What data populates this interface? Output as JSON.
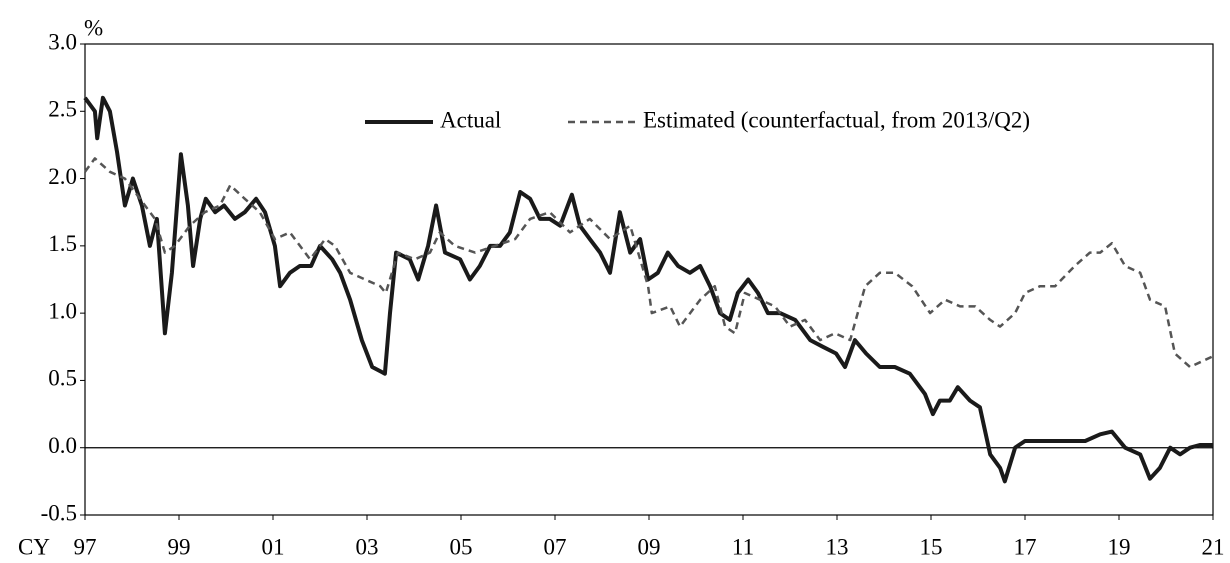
{
  "chart_data": {
    "type": "line",
    "y_unit": "%",
    "x_label": "CY",
    "xlim": [
      1997,
      2021
    ],
    "xticks": [
      {
        "value": 1997,
        "label": "97"
      },
      {
        "value": 1999,
        "label": "99"
      },
      {
        "value": 2001,
        "label": "01"
      },
      {
        "value": 2003,
        "label": "03"
      },
      {
        "value": 2005,
        "label": "05"
      },
      {
        "value": 2007,
        "label": "07"
      },
      {
        "value": 2009,
        "label": "09"
      },
      {
        "value": 2011,
        "label": "11"
      },
      {
        "value": 2013,
        "label": "13"
      },
      {
        "value": 2015,
        "label": "15"
      },
      {
        "value": 2017,
        "label": "17"
      },
      {
        "value": 2019,
        "label": "19"
      },
      {
        "value": 2021,
        "label": "21"
      }
    ],
    "ylim": [
      -0.5,
      3.0
    ],
    "yticks": [
      {
        "value": -0.5,
        "label": "-0.5"
      },
      {
        "value": 0,
        "label": "0.0"
      },
      {
        "value": 0.5,
        "label": "0.5"
      },
      {
        "value": 1,
        "label": "1.0"
      },
      {
        "value": 1.5,
        "label": "1.5"
      },
      {
        "value": 2,
        "label": "2.0"
      },
      {
        "value": 2.5,
        "label": "2.5"
      },
      {
        "value": 3,
        "label": "3.0"
      }
    ],
    "hline": 0,
    "grid": false,
    "legend": "top",
    "series": [
      {
        "name": "Actual",
        "color": "#1a1a1a",
        "dash": false,
        "width": 4,
        "x": [
          1997.0,
          1997.21,
          1997.26,
          1997.38,
          1997.53,
          1997.68,
          1997.85,
          1998.02,
          1998.21,
          1998.38,
          1998.53,
          1998.7,
          1998.85,
          1999.04,
          1999.19,
          1999.3,
          1999.45,
          1999.57,
          1999.77,
          1999.96,
          2000.19,
          2000.4,
          2000.64,
          2000.83,
          2001.04,
          2001.15,
          2001.36,
          2001.57,
          2001.81,
          2002.0,
          2002.26,
          2002.43,
          2002.64,
          2002.89,
          2003.11,
          2003.38,
          2003.49,
          2003.62,
          2003.91,
          2004.09,
          2004.3,
          2004.47,
          2004.66,
          2004.98,
          2005.19,
          2005.4,
          2005.62,
          2005.83,
          2006.04,
          2006.26,
          2006.47,
          2006.68,
          2006.89,
          2007.11,
          2007.36,
          2007.53,
          2007.74,
          2007.96,
          2008.17,
          2008.38,
          2008.6,
          2008.81,
          2008.98,
          2009.19,
          2009.4,
          2009.62,
          2009.87,
          2010.09,
          2010.3,
          2010.51,
          2010.72,
          2010.89,
          2011.11,
          2011.32,
          2011.53,
          2011.79,
          2012.11,
          2012.43,
          2012.7,
          2012.98,
          2013.17,
          2013.38,
          2013.62,
          2013.91,
          2014.23,
          2014.55,
          2014.87,
          2015.04,
          2015.19,
          2015.4,
          2015.57,
          2015.83,
          2016.04,
          2016.26,
          2016.47,
          2016.57,
          2016.79,
          2017.0,
          2017.32,
          2017.64,
          2017.96,
          2018.28,
          2018.6,
          2018.85,
          2019.13,
          2019.45,
          2019.66,
          2019.87,
          2020.09,
          2020.3,
          2020.51,
          2020.72,
          2021.0
        ],
        "values": [
          2.6,
          2.5,
          2.3,
          2.6,
          2.5,
          2.2,
          1.8,
          2.0,
          1.8,
          1.5,
          1.7,
          0.85,
          1.3,
          2.18,
          1.8,
          1.35,
          1.7,
          1.85,
          1.75,
          1.8,
          1.7,
          1.75,
          1.85,
          1.75,
          1.5,
          1.2,
          1.3,
          1.35,
          1.35,
          1.5,
          1.4,
          1.3,
          1.1,
          0.8,
          0.6,
          0.55,
          1.0,
          1.45,
          1.4,
          1.25,
          1.5,
          1.8,
          1.45,
          1.4,
          1.25,
          1.35,
          1.5,
          1.5,
          1.6,
          1.9,
          1.85,
          1.7,
          1.7,
          1.65,
          1.88,
          1.65,
          1.55,
          1.45,
          1.3,
          1.75,
          1.45,
          1.55,
          1.25,
          1.3,
          1.45,
          1.35,
          1.3,
          1.35,
          1.2,
          1.0,
          0.95,
          1.15,
          1.25,
          1.15,
          1.0,
          1.0,
          0.95,
          0.8,
          0.75,
          0.7,
          0.6,
          0.8,
          0.7,
          0.6,
          0.6,
          0.55,
          0.4,
          0.25,
          0.35,
          0.35,
          0.45,
          0.35,
          0.3,
          -0.05,
          -0.15,
          -0.25,
          0.0,
          0.05,
          0.05,
          0.05,
          0.05,
          0.05,
          0.1,
          0.12,
          0.0,
          -0.05,
          -0.23,
          -0.15,
          0.0,
          -0.05,
          0.0,
          0.02,
          0.02
        ]
      },
      {
        "name": "Estimated (counterfactual, from 2013/Q2)",
        "color": "#555555",
        "dash": true,
        "width": 2.5,
        "x": [
          1997.0,
          1997.21,
          1997.53,
          1997.85,
          1998.17,
          1998.49,
          1998.7,
          1998.91,
          1999.23,
          1999.55,
          1999.87,
          2000.09,
          2000.4,
          2000.72,
          2001.04,
          2001.36,
          2001.79,
          2002.11,
          2002.32,
          2002.64,
          2002.96,
          2003.28,
          2003.4,
          2003.66,
          2004.02,
          2004.34,
          2004.55,
          2004.87,
          2005.3,
          2005.72,
          2006.15,
          2006.47,
          2006.89,
          2007.32,
          2007.74,
          2008.17,
          2008.6,
          2008.98,
          2009.06,
          2009.45,
          2009.66,
          2010.09,
          2010.4,
          2010.62,
          2010.83,
          2011.04,
          2011.36,
          2011.68,
          2012.0,
          2012.32,
          2012.64,
          2012.96,
          2013.28,
          2013.6,
          2013.91,
          2014.23,
          2014.6,
          2014.98,
          2015.3,
          2015.62,
          2015.94,
          2016.26,
          2016.47,
          2016.79,
          2017.0,
          2017.32,
          2017.64,
          2018.06,
          2018.38,
          2018.6,
          2018.85,
          2019.13,
          2019.45,
          2019.66,
          2019.98,
          2020.19,
          2020.51,
          2021.0
        ],
        "values": [
          2.05,
          2.15,
          2.05,
          2.0,
          1.85,
          1.7,
          1.45,
          1.5,
          1.65,
          1.75,
          1.8,
          1.95,
          1.85,
          1.75,
          1.55,
          1.6,
          1.4,
          1.55,
          1.5,
          1.3,
          1.25,
          1.2,
          1.15,
          1.45,
          1.4,
          1.45,
          1.6,
          1.5,
          1.45,
          1.5,
          1.55,
          1.7,
          1.75,
          1.6,
          1.7,
          1.55,
          1.65,
          1.2,
          1.0,
          1.05,
          0.9,
          1.1,
          1.2,
          0.9,
          0.85,
          1.15,
          1.1,
          1.05,
          0.9,
          0.95,
          0.8,
          0.85,
          0.8,
          1.2,
          1.3,
          1.3,
          1.2,
          1.0,
          1.1,
          1.05,
          1.05,
          0.95,
          0.9,
          1.0,
          1.15,
          1.2,
          1.2,
          1.35,
          1.45,
          1.45,
          1.52,
          1.35,
          1.3,
          1.1,
          1.05,
          0.7,
          0.6,
          0.68
        ]
      }
    ]
  }
}
